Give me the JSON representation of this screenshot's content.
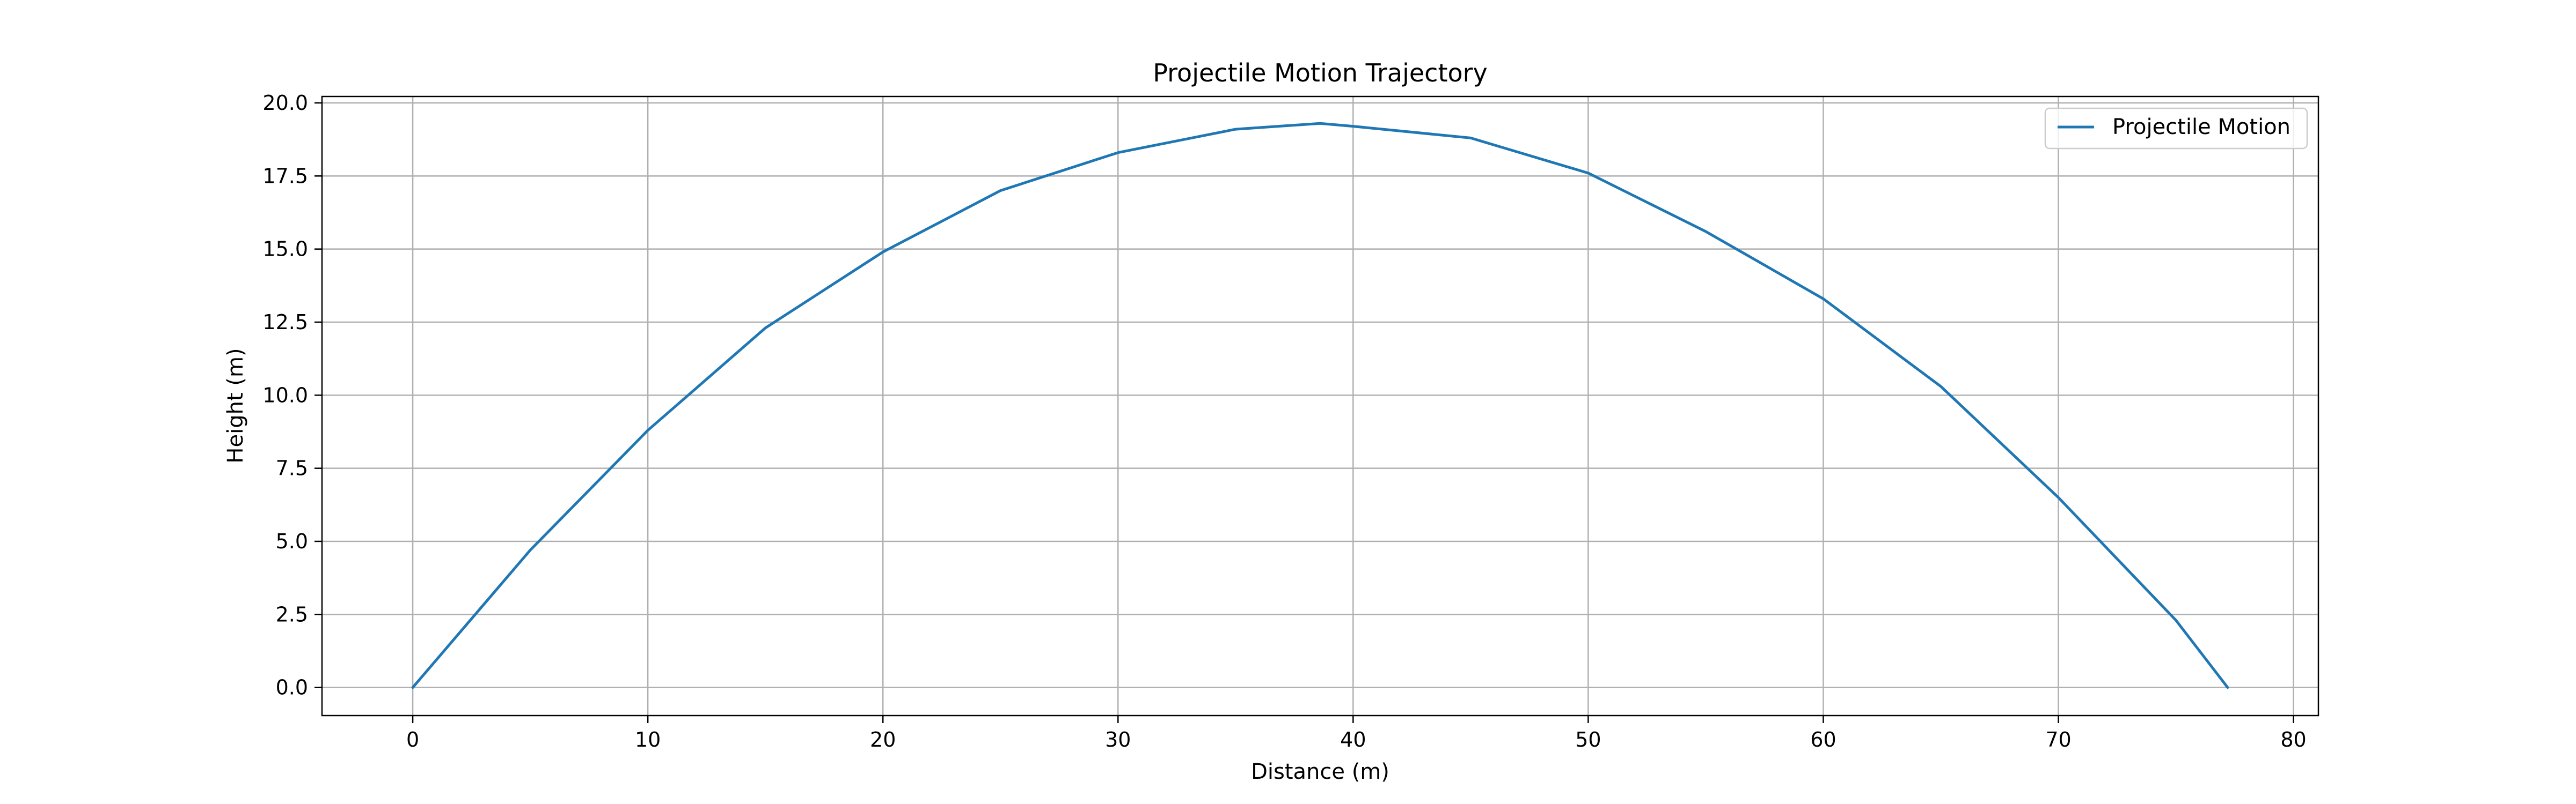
{
  "chart_data": {
    "type": "line",
    "title": "Projectile Motion Trajectory",
    "xlabel": "Distance (m)",
    "ylabel": "Height (m)",
    "xlim": [
      -3.86,
      81.06
    ],
    "ylim": [
      -0.96,
      20.22
    ],
    "xticks": [
      0,
      10,
      20,
      30,
      40,
      50,
      60,
      70,
      80
    ],
    "xtick_labels": [
      "0",
      "10",
      "20",
      "30",
      "40",
      "50",
      "60",
      "70",
      "80"
    ],
    "yticks": [
      0,
      2.5,
      5,
      7.5,
      10,
      12.5,
      15,
      17.5,
      20
    ],
    "ytick_labels": [
      "0.0",
      "2.5",
      "5.0",
      "7.5",
      "10.0",
      "12.5",
      "15.0",
      "17.5",
      "20.0"
    ],
    "grid": true,
    "legend_position": "top-right",
    "series": [
      {
        "name": "Projectile Motion",
        "color": "#1f77b4",
        "x": [
          0,
          5,
          10,
          15,
          20,
          25,
          30,
          35,
          38.6,
          40,
          45,
          50,
          55,
          60,
          65,
          70,
          75,
          77.2
        ],
        "y": [
          0,
          4.7,
          8.8,
          12.3,
          14.9,
          17.0,
          18.3,
          19.1,
          19.3,
          19.2,
          18.8,
          17.6,
          15.6,
          13.3,
          10.3,
          6.5,
          2.3,
          0
        ]
      }
    ]
  }
}
